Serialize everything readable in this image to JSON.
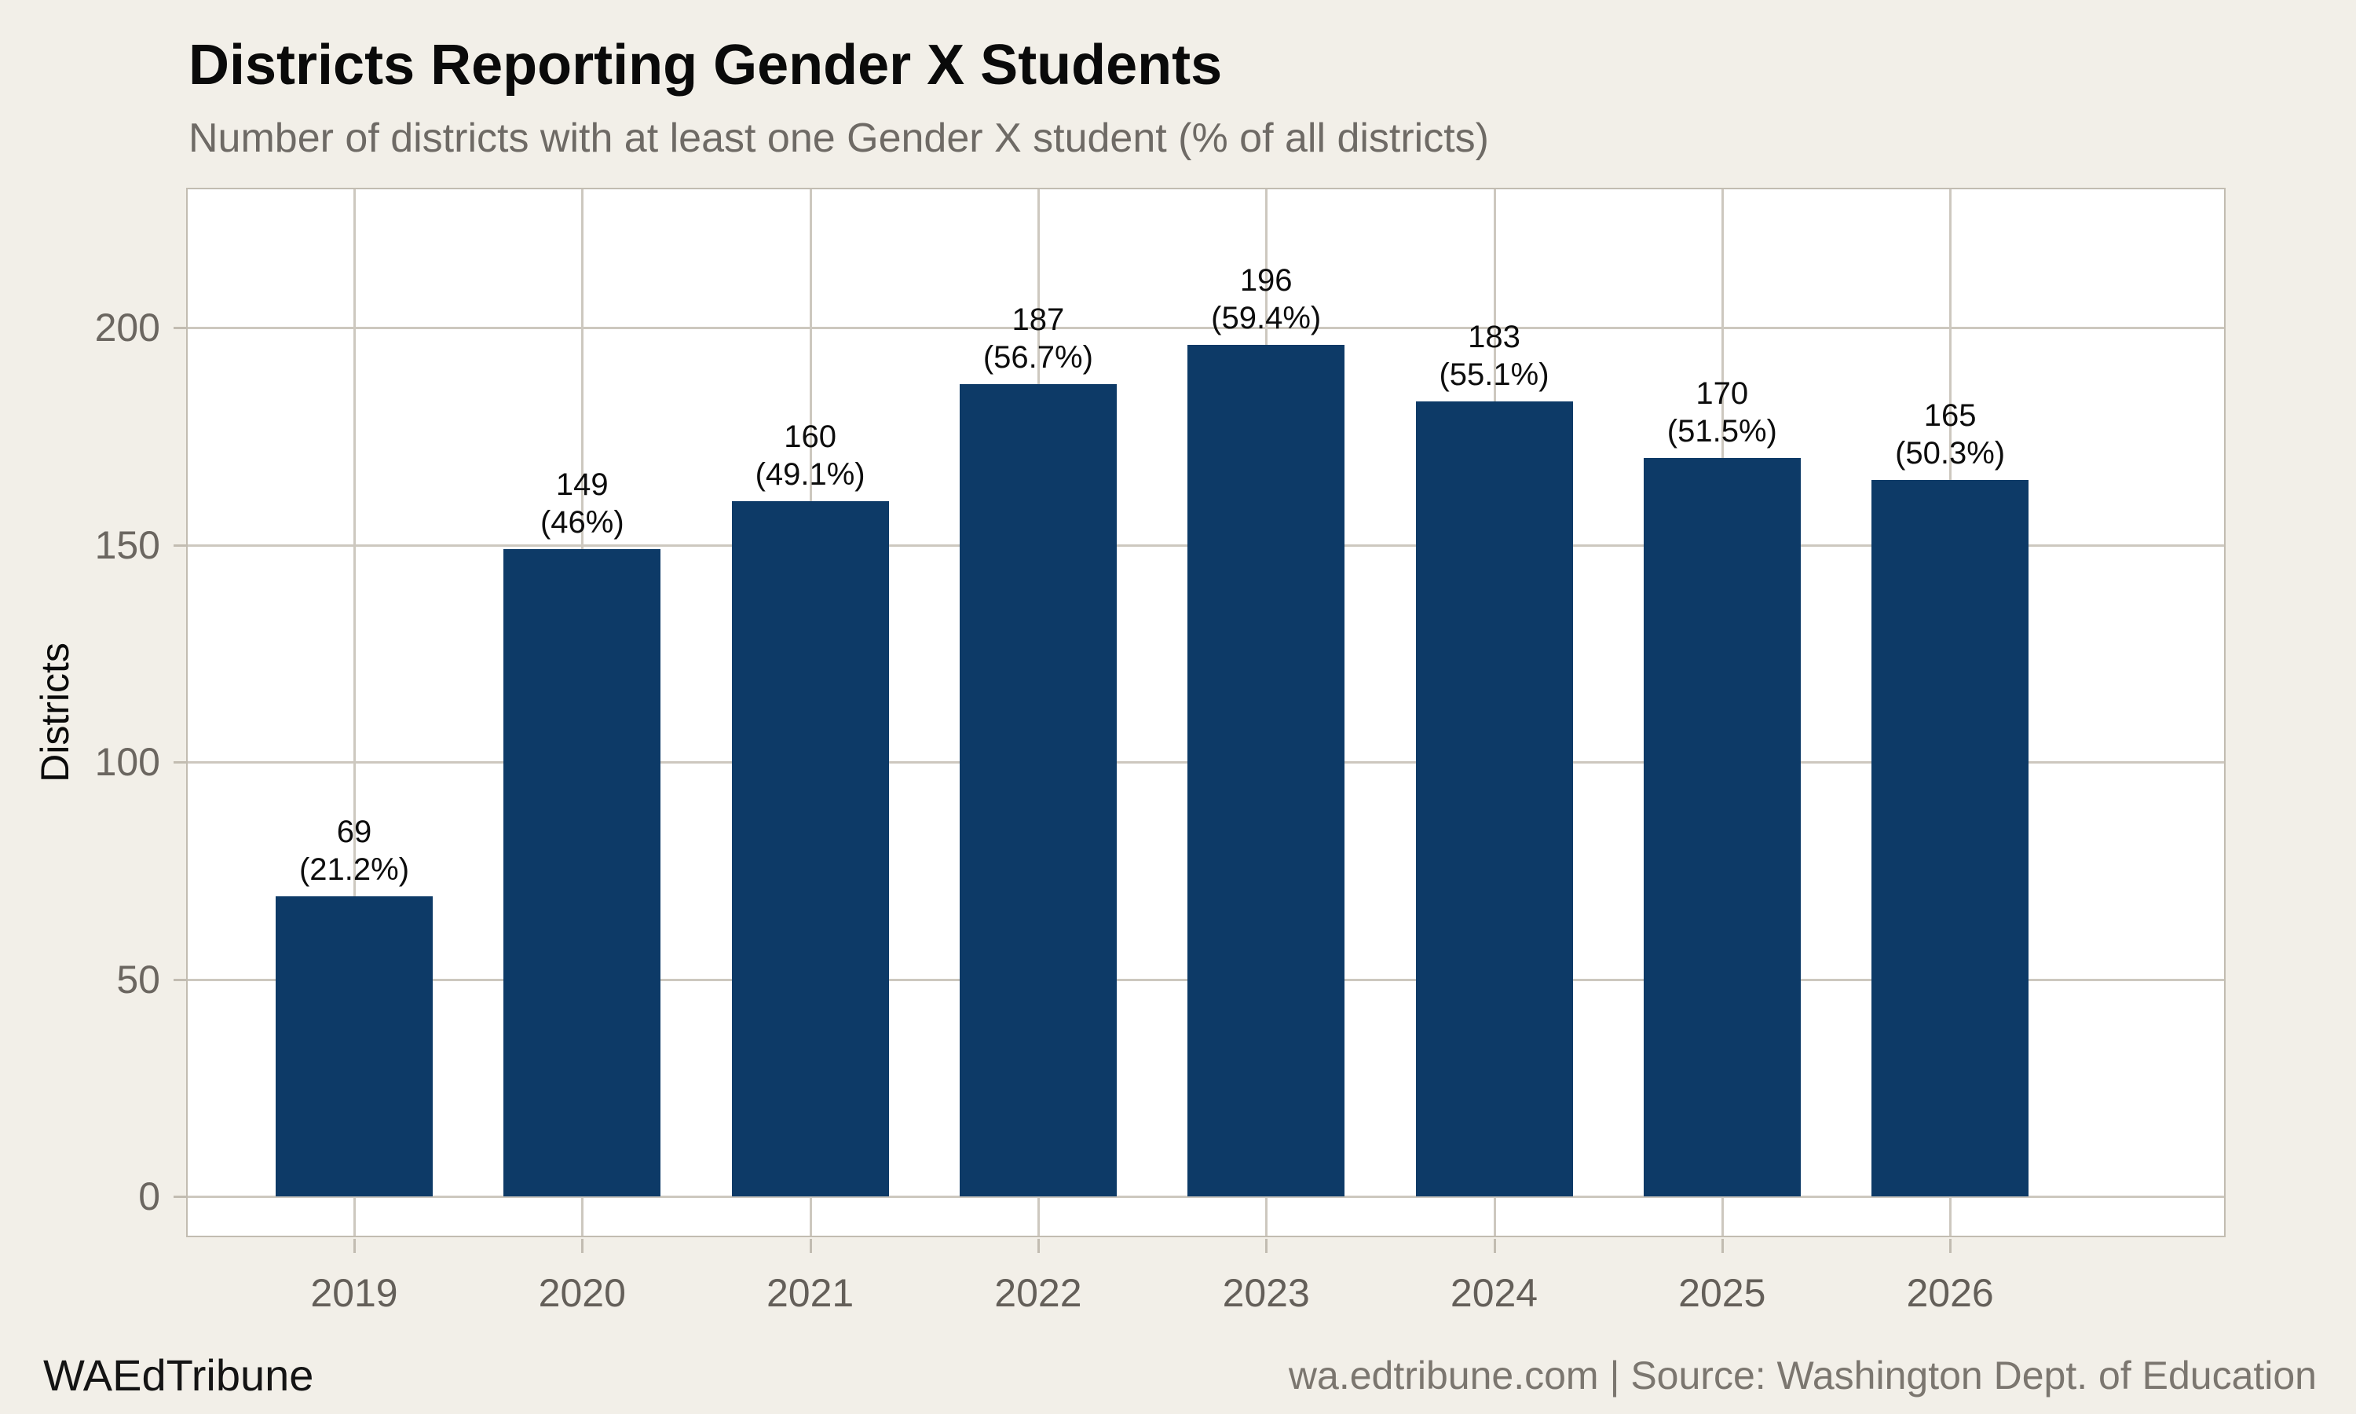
{
  "header": {
    "title": "Districts Reporting Gender X Students",
    "subtitle": "Number of districts with at least one Gender X student (% of all districts)"
  },
  "footer": {
    "brand": "WAEdTribune",
    "source": "wa.edtribune.com | Source: Washington Dept. of Education"
  },
  "chart_data": {
    "type": "bar",
    "title": "Districts Reporting Gender X Students",
    "subtitle": "Number of districts with at least one Gender X student (% of all districts)",
    "categories": [
      "2019",
      "2020",
      "2021",
      "2022",
      "2023",
      "2024",
      "2025",
      "2026"
    ],
    "values": [
      69,
      149,
      160,
      187,
      196,
      183,
      170,
      165
    ],
    "bar_labels": [
      {
        "count": "69",
        "pct": "(21.2%)"
      },
      {
        "count": "149",
        "pct": "(46%)"
      },
      {
        "count": "160",
        "pct": "(49.1%)"
      },
      {
        "count": "187",
        "pct": "(56.7%)"
      },
      {
        "count": "196",
        "pct": "(59.4%)"
      },
      {
        "count": "183",
        "pct": "(55.1%)"
      },
      {
        "count": "170",
        "pct": "(51.5%)"
      },
      {
        "count": "165",
        "pct": "(50.3%)"
      }
    ],
    "xlabel": "",
    "ylabel": "Districts",
    "yticks": [
      0,
      50,
      100,
      150,
      200
    ],
    "ylim": [
      0,
      232
    ],
    "grid": true,
    "legend": "none",
    "bar_color": "#0d3a67",
    "background_color": "#f2efe8",
    "panel_color": "#ffffff"
  }
}
